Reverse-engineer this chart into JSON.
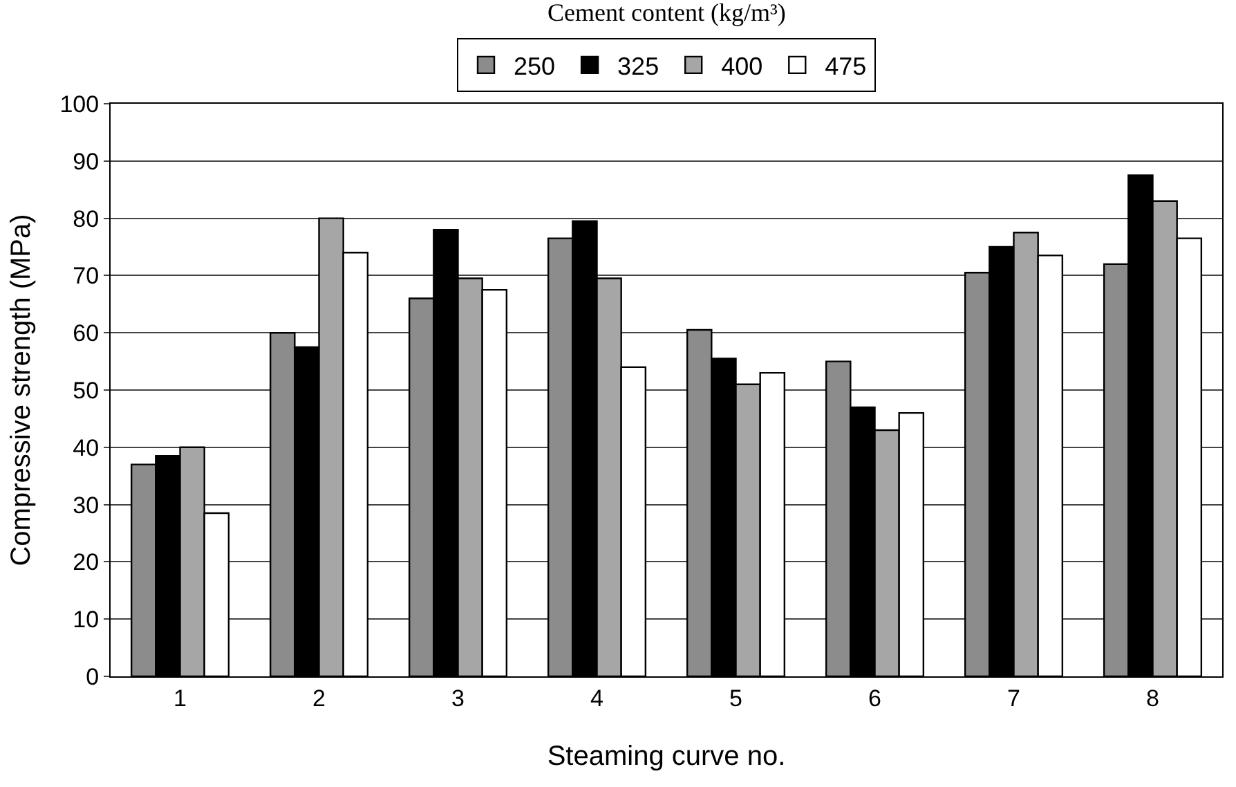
{
  "chart_data": {
    "type": "bar",
    "xlabel": "Steaming curve no.",
    "ylabel": "Compressive strength (MPa)",
    "legend_title": "Cement content (kg/m³)",
    "categories": [
      "1",
      "2",
      "3",
      "4",
      "5",
      "6",
      "7",
      "8"
    ],
    "series": [
      {
        "name": "250",
        "color": "#8c8c8c",
        "values": [
          37,
          60,
          66,
          76.5,
          60.5,
          55,
          70.5,
          72
        ]
      },
      {
        "name": "325",
        "color": "#000000",
        "values": [
          38.5,
          57.5,
          78,
          79.5,
          55.5,
          47,
          75,
          87.5
        ]
      },
      {
        "name": "400",
        "color": "#a6a6a6",
        "values": [
          40,
          80,
          69.5,
          69.5,
          51,
          43,
          77.5,
          83
        ]
      },
      {
        "name": "475",
        "color": "#ffffff",
        "values": [
          28.5,
          74,
          67.5,
          54,
          53,
          46,
          73.5,
          76.5
        ]
      }
    ],
    "ylim": [
      0,
      100
    ],
    "yticks": [
      0,
      10,
      20,
      30,
      40,
      50,
      60,
      70,
      80,
      90,
      100
    ],
    "grid": "y",
    "legend": "top"
  }
}
